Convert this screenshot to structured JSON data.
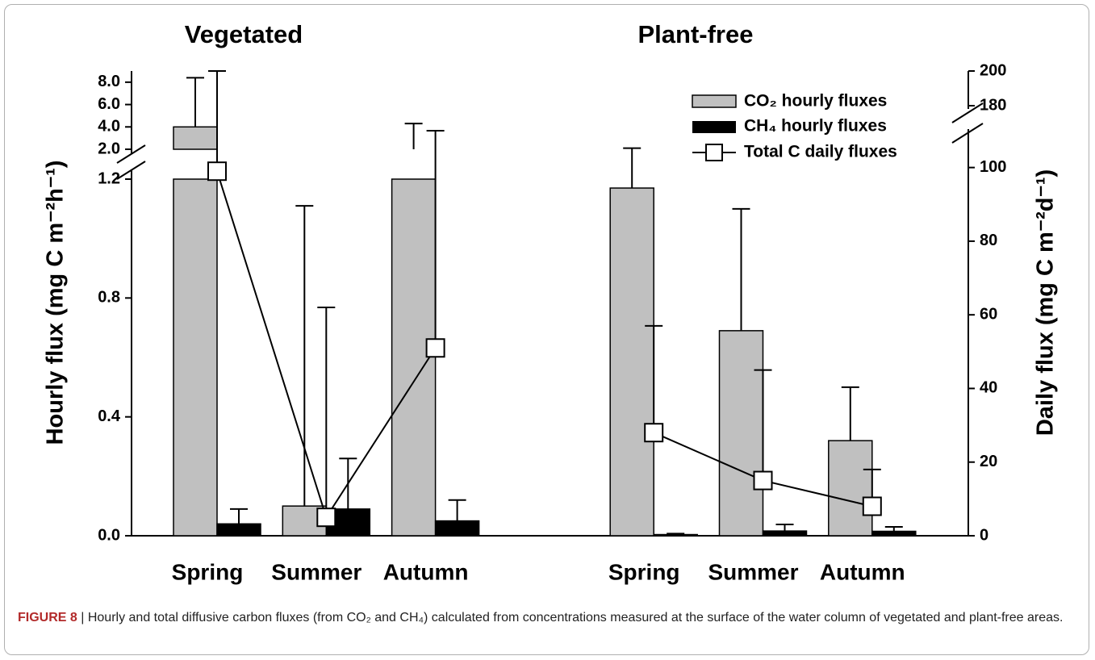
{
  "chart_data": {
    "type": "bar",
    "group_titles": [
      "Vegetated",
      "Plant-free"
    ],
    "categories": [
      "Spring",
      "Summer",
      "Autumn",
      "Spring",
      "Summer",
      "Autumn"
    ],
    "ylabel": "Hourly flux (mg C m⁻²h⁻¹)",
    "y2label": "Daily flux (mg C m⁻²d⁻¹)",
    "ylim": [
      0,
      9
    ],
    "y_break": [
      1.2,
      2
    ],
    "yticks": [
      {
        "value": 0,
        "label": "0.0"
      },
      {
        "value": 0.4,
        "label": "0.4"
      },
      {
        "value": 0.8,
        "label": "0.8"
      },
      {
        "value": 1.2,
        "label": "1.2"
      },
      {
        "value": 2,
        "label": "2.0"
      },
      {
        "value": 4,
        "label": "4.0"
      },
      {
        "value": 6,
        "label": "6.0"
      },
      {
        "value": 8,
        "label": "8.0"
      }
    ],
    "y2lim": [
      0,
      200
    ],
    "y2_break": [
      110,
      180
    ],
    "y2ticks": [
      0,
      20,
      40,
      60,
      80,
      100,
      180,
      200
    ],
    "series": [
      {
        "name": "CO₂ hourly fluxes",
        "type": "bar",
        "color": "#c0c0c0",
        "values": [
          4.0,
          0.1,
          2.0,
          1.17,
          0.69,
          0.32
        ],
        "errors": [
          4.4,
          1.01,
          2.3,
          0.93,
          0.41,
          0.18
        ]
      },
      {
        "name": "CH₄ hourly fluxes",
        "type": "bar",
        "color": "#000000",
        "values": [
          0.04,
          0.09,
          0.05,
          0.004,
          0.016,
          0.015
        ],
        "errors": [
          0.05,
          0.17,
          0.07,
          0.003,
          0.022,
          0.015
        ]
      },
      {
        "name": "Total C daily fluxes",
        "type": "line",
        "axis": "y2",
        "color": "#ffffff",
        "values": [
          99,
          5,
          51,
          28,
          15,
          8
        ],
        "errors": [
          101,
          57,
          59,
          29,
          30,
          10
        ]
      }
    ]
  },
  "caption": {
    "label": "FIGURE 8",
    "text": "| Hourly and total diffusive carbon fluxes (from CO₂ and CH₄) calculated from concentrations measured at the surface of the water column of vegetated and plant-free areas."
  }
}
